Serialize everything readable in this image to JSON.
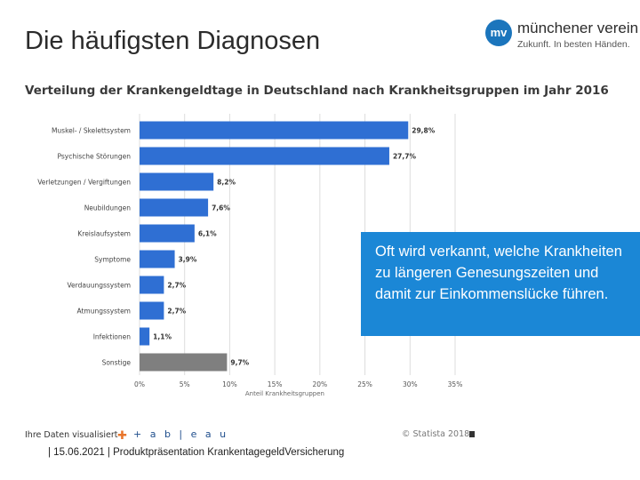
{
  "slide": {
    "title": "Die häufigsten Diagnosen",
    "footer": "| 15.06.2021 | Produktpräsentation KrankentagegeldVersicherung"
  },
  "logo": {
    "mark": "mv",
    "name": "münchener verein",
    "slogan": "Zukunft. In besten Händen."
  },
  "callout": {
    "text": "Oft wird verkannt, welche Krankheiten zu längeren Genesungszeiten  und damit zur Einkommenslücke führen."
  },
  "chart_footer": {
    "left": "Ihre Daten visualisiert",
    "tableau_word": "+ a b | e a u",
    "statista": "© Statista 2018"
  },
  "colors": {
    "bar": "#2f6fd3",
    "bar_other": "#7f7f7f",
    "callout": "#1b87d6",
    "grid": "#dddddd"
  },
  "chart_data": {
    "type": "bar",
    "orientation": "horizontal",
    "title": "Verteilung der Krankengeldtage in Deutschland nach Krankheitsgruppen im Jahr 2016",
    "xlabel": "Anteil Krankheitsgruppen",
    "ylabel": "",
    "xlim": [
      0,
      35
    ],
    "xticks": [
      0,
      5,
      10,
      15,
      20,
      25,
      30,
      35
    ],
    "xtick_labels": [
      "0%",
      "5%",
      "10%",
      "15%",
      "20%",
      "25%",
      "30%",
      "35%"
    ],
    "grid": true,
    "categories": [
      "Muskel- / Skelettsystem",
      "Psychische Störungen",
      "Verletzungen / Vergiftungen",
      "Neubildungen",
      "Kreislaufsystem",
      "Symptome",
      "Verdauungssystem",
      "Atmungssystem",
      "Infektionen",
      "Sonstige"
    ],
    "values": [
      29.8,
      27.7,
      8.2,
      7.6,
      6.1,
      3.9,
      2.7,
      2.7,
      1.1,
      9.7
    ],
    "value_labels": [
      "29,8%",
      "27,7%",
      "8,2%",
      "7,6%",
      "6,1%",
      "3,9%",
      "2,7%",
      "2,7%",
      "1,1%",
      "9,7%"
    ],
    "highlight_other_index": 9
  }
}
